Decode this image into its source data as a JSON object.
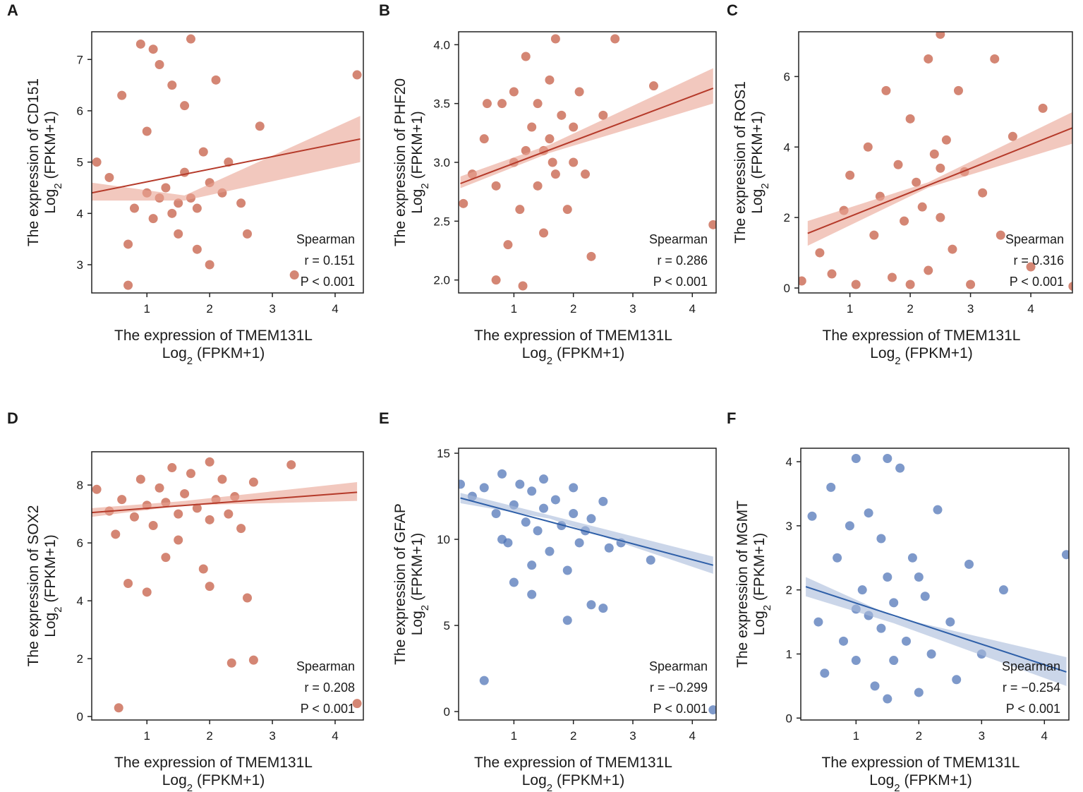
{
  "chart_data": [
    {
      "type": "scatter",
      "panel_label": "A",
      "color": "#c4573f",
      "line_color": "#b53a2a",
      "band_color": "#e9a493",
      "x_label": "The expression of TMEM131L",
      "y_label": "The expression of CD151",
      "unit_label": {
        "base": "Log",
        "sub": "2",
        "rest": " (FPKM+1)"
      },
      "annotation": [
        "Spearman",
        "r = 0.151",
        "P < 0.001"
      ],
      "xlim": [
        0.12,
        4.45
      ],
      "ylim": [
        2.45,
        7.54
      ],
      "xticks": [
        1,
        2,
        3,
        4
      ],
      "yticks": [
        3,
        4,
        5,
        6,
        7
      ],
      "x": [
        0.2,
        0.4,
        0.6,
        0.7,
        0.8,
        0.9,
        1.0,
        1.0,
        1.1,
        1.2,
        1.2,
        1.3,
        1.4,
        1.4,
        1.5,
        1.5,
        1.6,
        1.6,
        1.7,
        1.7,
        1.8,
        1.9,
        2.0,
        2.0,
        2.1,
        2.2,
        2.3,
        2.5,
        2.6,
        2.8,
        3.35,
        4.35,
        0.7,
        1.1,
        1.8
      ],
      "y": [
        5.0,
        4.7,
        6.3,
        3.4,
        4.1,
        7.3,
        4.4,
        5.6,
        3.9,
        6.9,
        4.3,
        4.5,
        6.5,
        4.0,
        4.2,
        3.6,
        4.8,
        6.1,
        4.3,
        7.4,
        4.1,
        5.2,
        4.6,
        3.0,
        6.6,
        4.4,
        5.0,
        4.2,
        3.6,
        5.7,
        2.8,
        6.7,
        2.6,
        7.2,
        3.3
      ],
      "fit": {
        "x": [
          0.12,
          4.4
        ],
        "y": [
          4.4,
          5.45
        ]
      },
      "band": {
        "x": [
          0.12,
          1.6,
          4.4
        ],
        "lower": [
          4.25,
          4.25,
          5.0
        ],
        "upper": [
          4.6,
          4.35,
          5.9
        ]
      }
    },
    {
      "type": "scatter",
      "panel_label": "B",
      "color": "#c4573f",
      "line_color": "#b53a2a",
      "band_color": "#e9a493",
      "x_label": "The expression of TMEM131L",
      "y_label": "The expression of PHF20",
      "unit_label": {
        "base": "Log",
        "sub": "2",
        "rest": " (FPKM+1)"
      },
      "annotation": [
        "Spearman",
        "r = 0.286",
        "P < 0.001"
      ],
      "xlim": [
        0.07,
        4.4
      ],
      "ylim": [
        1.89,
        4.11
      ],
      "xticks": [
        1,
        2,
        3,
        4
      ],
      "yticks": [
        {
          "value": 2,
          "label": "2.0"
        },
        2.5,
        {
          "value": 3,
          "label": "3.0"
        },
        3.5,
        {
          "value": 4,
          "label": "4.0"
        }
      ],
      "x": [
        0.15,
        0.3,
        0.5,
        0.7,
        0.8,
        0.9,
        1.0,
        1.0,
        1.1,
        1.2,
        1.2,
        1.3,
        1.4,
        1.4,
        1.5,
        1.5,
        1.6,
        1.6,
        1.7,
        1.7,
        1.8,
        1.9,
        2.0,
        2.0,
        2.1,
        2.3,
        2.5,
        2.7,
        3.35,
        4.35,
        0.7,
        1.15,
        1.65,
        2.2,
        0.55
      ],
      "y": [
        2.65,
        2.9,
        3.2,
        2.0,
        3.5,
        2.3,
        3.0,
        3.6,
        2.6,
        3.1,
        3.9,
        3.3,
        2.8,
        3.5,
        3.1,
        2.4,
        3.7,
        3.2,
        2.9,
        4.05,
        3.4,
        2.6,
        3.3,
        3.0,
        3.6,
        2.2,
        3.4,
        4.05,
        3.65,
        2.47,
        2.8,
        1.95,
        3.0,
        2.9,
        3.5
      ],
      "fit": {
        "x": [
          0.1,
          4.35
        ],
        "y": [
          2.82,
          3.63
        ]
      },
      "band": {
        "x": [
          0.1,
          1.6,
          4.35
        ],
        "lower": [
          2.78,
          3.08,
          3.5
        ],
        "upper": [
          2.88,
          3.15,
          3.8
        ]
      }
    },
    {
      "type": "scatter",
      "panel_label": "C",
      "color": "#c4573f",
      "line_color": "#b53a2a",
      "band_color": "#e9a493",
      "x_label": "The expression of TMEM131L",
      "y_label": "The expression of ROS1",
      "unit_label": {
        "base": "Log",
        "sub": "2",
        "rest": " (FPKM+1)"
      },
      "annotation": [
        "Spearman",
        "r = 0.316",
        "P < 0.001"
      ],
      "xlim": [
        0.15,
        4.69
      ],
      "ylim": [
        -0.14,
        7.27
      ],
      "xticks": [
        1,
        2,
        3,
        4
      ],
      "yticks": [
        0,
        2,
        4,
        6
      ],
      "x": [
        0.2,
        0.5,
        0.7,
        0.9,
        1.0,
        1.1,
        1.3,
        1.4,
        1.5,
        1.6,
        1.7,
        1.8,
        1.9,
        2.0,
        2.0,
        2.1,
        2.2,
        2.3,
        2.3,
        2.4,
        2.5,
        2.5,
        2.6,
        2.7,
        2.8,
        2.9,
        3.0,
        3.2,
        3.4,
        3.5,
        3.7,
        4.0,
        4.2,
        4.7,
        2.5
      ],
      "y": [
        0.2,
        1.0,
        0.4,
        2.2,
        3.2,
        0.1,
        4.0,
        1.5,
        2.6,
        5.6,
        0.3,
        3.5,
        1.9,
        4.8,
        0.1,
        3.0,
        2.3,
        6.5,
        0.5,
        3.8,
        7.2,
        2.0,
        4.2,
        1.1,
        5.6,
        3.3,
        0.1,
        2.7,
        6.5,
        1.5,
        4.3,
        0.6,
        5.1,
        0.05,
        3.4
      ],
      "fit": {
        "x": [
          0.3,
          4.7
        ],
        "y": [
          1.55,
          4.55
        ]
      },
      "band": {
        "x": [
          0.3,
          2.3,
          4.7
        ],
        "lower": [
          1.2,
          2.85,
          4.1
        ],
        "upper": [
          1.9,
          3.0,
          5.0
        ]
      }
    },
    {
      "type": "scatter",
      "panel_label": "D",
      "color": "#c4573f",
      "line_color": "#b53a2a",
      "band_color": "#e9a493",
      "x_label": "The expression of TMEM131L",
      "y_label": "The expression of SOX2",
      "unit_label": {
        "base": "Log",
        "sub": "2",
        "rest": " (FPKM+1)"
      },
      "annotation": [
        "Spearman",
        "r = 0.208",
        "P < 0.001"
      ],
      "xlim": [
        0.12,
        4.45
      ],
      "ylim": [
        -0.12,
        9.15
      ],
      "xticks": [
        1,
        2,
        3,
        4
      ],
      "yticks": [
        0,
        2,
        4,
        6,
        8
      ],
      "x": [
        0.2,
        0.4,
        0.5,
        0.6,
        0.7,
        0.8,
        0.9,
        1.0,
        1.0,
        1.1,
        1.2,
        1.3,
        1.3,
        1.4,
        1.5,
        1.5,
        1.6,
        1.7,
        1.8,
        1.9,
        2.0,
        2.0,
        2.1,
        2.2,
        2.3,
        2.4,
        2.5,
        2.6,
        2.7,
        3.3,
        4.35,
        0.55,
        2.35,
        2.7,
        2.0
      ],
      "y": [
        7.85,
        7.1,
        6.3,
        7.5,
        4.6,
        6.9,
        8.2,
        7.3,
        4.3,
        6.6,
        7.9,
        7.4,
        5.5,
        8.6,
        7.0,
        6.1,
        7.7,
        8.4,
        7.2,
        5.1,
        8.8,
        6.8,
        7.5,
        8.2,
        7.0,
        7.6,
        6.5,
        4.1,
        8.1,
        8.7,
        0.45,
        0.3,
        1.85,
        1.95,
        4.5
      ],
      "fit": {
        "x": [
          0.12,
          4.35
        ],
        "y": [
          7.05,
          7.75
        ]
      },
      "band": {
        "x": [
          0.12,
          1.6,
          4.35
        ],
        "lower": [
          6.9,
          7.3,
          7.45
        ],
        "upper": [
          7.2,
          7.45,
          8.1
        ]
      }
    },
    {
      "type": "scatter",
      "panel_label": "E",
      "color": "#4c72b5",
      "line_color": "#2e5fa8",
      "band_color": "#a9badb",
      "x_label": "The expression of TMEM131L",
      "y_label": "The expression of GFAP",
      "unit_label": {
        "base": "Log",
        "sub": "2",
        "rest": " (FPKM+1)"
      },
      "annotation": [
        "Spearman",
        "r = −0.299",
        "P < 0.001"
      ],
      "xlim": [
        0.07,
        4.4
      ],
      "ylim": [
        -0.49,
        15.29
      ],
      "xticks": [
        1,
        2,
        3,
        4
      ],
      "yticks": [
        0,
        5,
        10,
        15
      ],
      "x": [
        0.1,
        0.3,
        0.5,
        0.5,
        0.7,
        0.8,
        0.9,
        1.0,
        1.0,
        1.1,
        1.2,
        1.3,
        1.3,
        1.4,
        1.5,
        1.5,
        1.6,
        1.7,
        1.8,
        1.9,
        2.0,
        2.0,
        2.1,
        2.2,
        2.3,
        2.5,
        2.6,
        2.8,
        3.3,
        4.35,
        1.9,
        2.5,
        1.3,
        0.8,
        2.3
      ],
      "y": [
        13.2,
        12.5,
        1.8,
        13.0,
        11.5,
        13.8,
        9.8,
        12.0,
        7.5,
        13.2,
        11.0,
        12.8,
        8.5,
        10.5,
        13.5,
        11.8,
        9.3,
        12.3,
        10.8,
        8.2,
        11.5,
        13.0,
        9.8,
        10.5,
        11.2,
        6.0,
        9.5,
        9.8,
        8.8,
        0.1,
        5.3,
        12.2,
        6.8,
        10.0,
        6.2
      ],
      "fit": {
        "x": [
          0.1,
          4.35
        ],
        "y": [
          12.4,
          8.5
        ]
      },
      "band": {
        "x": [
          0.1,
          1.6,
          4.35
        ],
        "lower": [
          12.1,
          11.2,
          8.0
        ],
        "upper": [
          12.7,
          11.4,
          9.0
        ]
      }
    },
    {
      "type": "scatter",
      "panel_label": "F",
      "color": "#4c72b5",
      "line_color": "#2e5fa8",
      "band_color": "#a9badb",
      "x_label": "The expression of TMEM131L",
      "y_label": "The expression of MGMT",
      "unit_label": {
        "base": "Log",
        "sub": "2",
        "rest": " (FPKM+1)"
      },
      "annotation": [
        "Spearman",
        "r = −0.254",
        "P < 0.001"
      ],
      "xlim": [
        0.12,
        4.39
      ],
      "ylim": [
        -0.03,
        4.21
      ],
      "xticks": [
        1,
        2,
        3,
        4
      ],
      "yticks": [
        0,
        1,
        2,
        3,
        4
      ],
      "x": [
        0.3,
        0.4,
        0.5,
        0.6,
        0.7,
        0.8,
        0.9,
        1.0,
        1.0,
        1.1,
        1.2,
        1.2,
        1.3,
        1.4,
        1.4,
        1.5,
        1.5,
        1.6,
        1.6,
        1.7,
        1.8,
        1.9,
        2.0,
        2.1,
        2.2,
        2.3,
        2.5,
        2.6,
        2.8,
        3.0,
        3.35,
        4.35,
        1.0,
        1.5,
        2.0
      ],
      "y": [
        3.15,
        1.5,
        0.7,
        3.6,
        2.5,
        1.2,
        3.0,
        4.05,
        0.9,
        2.0,
        3.2,
        1.6,
        0.5,
        2.8,
        1.4,
        4.05,
        2.2,
        0.9,
        1.8,
        3.9,
        1.2,
        2.5,
        0.4,
        1.9,
        1.0,
        3.25,
        1.5,
        0.6,
        2.4,
        1.0,
        2.0,
        2.55,
        1.7,
        0.3,
        2.2
      ],
      "fit": {
        "x": [
          0.2,
          4.35
        ],
        "y": [
          2.05,
          0.72
        ]
      },
      "band": {
        "x": [
          0.2,
          1.6,
          4.35
        ],
        "lower": [
          1.9,
          1.48,
          0.5
        ],
        "upper": [
          2.2,
          1.58,
          0.95
        ]
      }
    }
  ]
}
